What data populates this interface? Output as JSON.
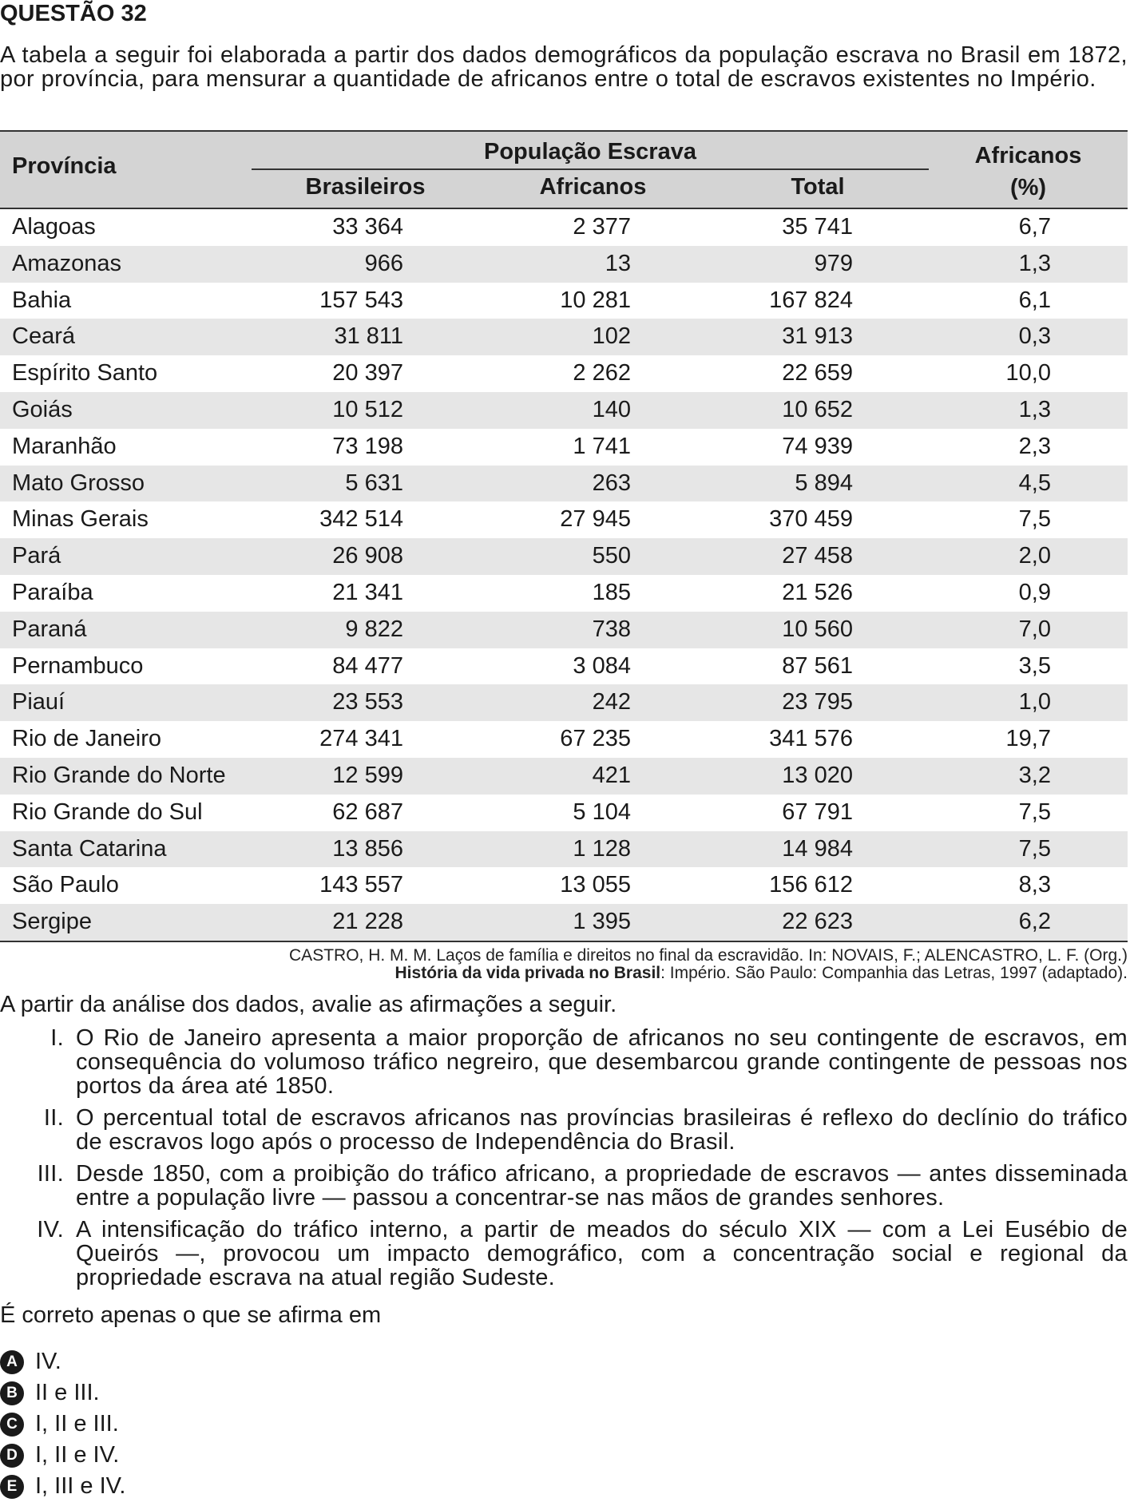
{
  "question_title": "QUESTÃO 32",
  "intro": "A tabela a seguir foi elaborada a partir dos dados demográficos da população escrava no Brasil em 1872, por província, para mensurar a quantidade de africanos entre o total de escravos existentes no Império.",
  "table": {
    "header_province": "Província",
    "header_group": "População Escrava",
    "header_brasileiros": "Brasileiros",
    "header_africanos": "Africanos",
    "header_total": "Total",
    "header_pct_line1": "Africanos",
    "header_pct_line2": "(%)",
    "rows": [
      {
        "provincia": "Alagoas",
        "brasileiros": "33 364",
        "africanos": "2 377",
        "total": "35 741",
        "pct": "6,7"
      },
      {
        "provincia": "Amazonas",
        "brasileiros": "966",
        "africanos": "13",
        "total": "979",
        "pct": "1,3"
      },
      {
        "provincia": "Bahia",
        "brasileiros": "157 543",
        "africanos": "10 281",
        "total": "167 824",
        "pct": "6,1"
      },
      {
        "provincia": "Ceará",
        "brasileiros": "31 811",
        "africanos": "102",
        "total": "31 913",
        "pct": "0,3"
      },
      {
        "provincia": "Espírito Santo",
        "brasileiros": "20 397",
        "africanos": "2 262",
        "total": "22 659",
        "pct": "10,0"
      },
      {
        "provincia": "Goiás",
        "brasileiros": "10 512",
        "africanos": "140",
        "total": "10 652",
        "pct": "1,3"
      },
      {
        "provincia": "Maranhão",
        "brasileiros": "73 198",
        "africanos": "1 741",
        "total": "74 939",
        "pct": "2,3"
      },
      {
        "provincia": "Mato Grosso",
        "brasileiros": "5 631",
        "africanos": "263",
        "total": "5 894",
        "pct": "4,5"
      },
      {
        "provincia": "Minas Gerais",
        "brasileiros": "342 514",
        "africanos": "27 945",
        "total": "370 459",
        "pct": "7,5"
      },
      {
        "provincia": "Pará",
        "brasileiros": "26 908",
        "africanos": "550",
        "total": "27 458",
        "pct": "2,0"
      },
      {
        "provincia": "Paraíba",
        "brasileiros": "21 341",
        "africanos": "185",
        "total": "21 526",
        "pct": "0,9"
      },
      {
        "provincia": "Paraná",
        "brasileiros": "9 822",
        "africanos": "738",
        "total": "10 560",
        "pct": "7,0"
      },
      {
        "provincia": "Pernambuco",
        "brasileiros": "84 477",
        "africanos": "3 084",
        "total": "87 561",
        "pct": "3,5"
      },
      {
        "provincia": "Piauí",
        "brasileiros": "23 553",
        "africanos": "242",
        "total": "23 795",
        "pct": "1,0"
      },
      {
        "provincia": "Rio de Janeiro",
        "brasileiros": "274 341",
        "africanos": "67 235",
        "total": "341 576",
        "pct": "19,7"
      },
      {
        "provincia": "Rio Grande do Norte",
        "brasileiros": "12 599",
        "africanos": "421",
        "total": "13 020",
        "pct": "3,2"
      },
      {
        "provincia": "Rio Grande do Sul",
        "brasileiros": "62 687",
        "africanos": "5 104",
        "total": "67 791",
        "pct": "7,5"
      },
      {
        "provincia": "Santa Catarina",
        "brasileiros": "13 856",
        "africanos": "1 128",
        "total": "14 984",
        "pct": "7,5"
      },
      {
        "provincia": "São Paulo",
        "brasileiros": "143 557",
        "africanos": "13 055",
        "total": "156 612",
        "pct": "8,3"
      },
      {
        "provincia": "Sergipe",
        "brasileiros": "21 228",
        "africanos": "1 395",
        "total": "22 623",
        "pct": "6,2"
      }
    ]
  },
  "source": {
    "line1": "CASTRO, H. M. M. Laços de família e direitos no final da escravidão. In: NOVAIS, F.; ALENCASTRO, L. F. (Org.)",
    "line2_bold": "História da vida privada no Brasil",
    "line2_rest": ": Império. São Paulo: Companhia das Letras, 1997 (adaptado)."
  },
  "lead": "A partir da análise dos dados, avalie as afirmações a seguir.",
  "statements": [
    {
      "num": "I.",
      "text": "O Rio de Janeiro apresenta a maior proporção de africanos no seu contingente de escravos, em consequência do volumoso tráfico negreiro, que desembarcou grande contingente de pessoas nos portos da área até 1850."
    },
    {
      "num": "II.",
      "text": "O percentual total de escravos africanos nas províncias brasileiras é reflexo do declínio do tráfico de escravos logo após o processo de Independência do Brasil."
    },
    {
      "num": "III.",
      "text": "Desde 1850, com a proibição do tráfico africano, a propriedade de escravos — antes disseminada entre a população livre — passou a concentrar-se nas mãos de grandes senhores."
    },
    {
      "num": "IV.",
      "text": "A intensificação do tráfico interno, a partir de meados do século XIX — com a Lei Eusébio de Queirós —, provocou um impacto demográfico, com a concentração social e regional da propriedade escrava na atual região Sudeste."
    }
  ],
  "ask": "É correto apenas o que se afirma em",
  "options": [
    {
      "letter": "A",
      "text": "IV."
    },
    {
      "letter": "B",
      "text": "II e III."
    },
    {
      "letter": "C",
      "text": "I, II e III."
    },
    {
      "letter": "D",
      "text": "I, II e IV."
    },
    {
      "letter": "E",
      "text": "I, III e IV."
    }
  ]
}
